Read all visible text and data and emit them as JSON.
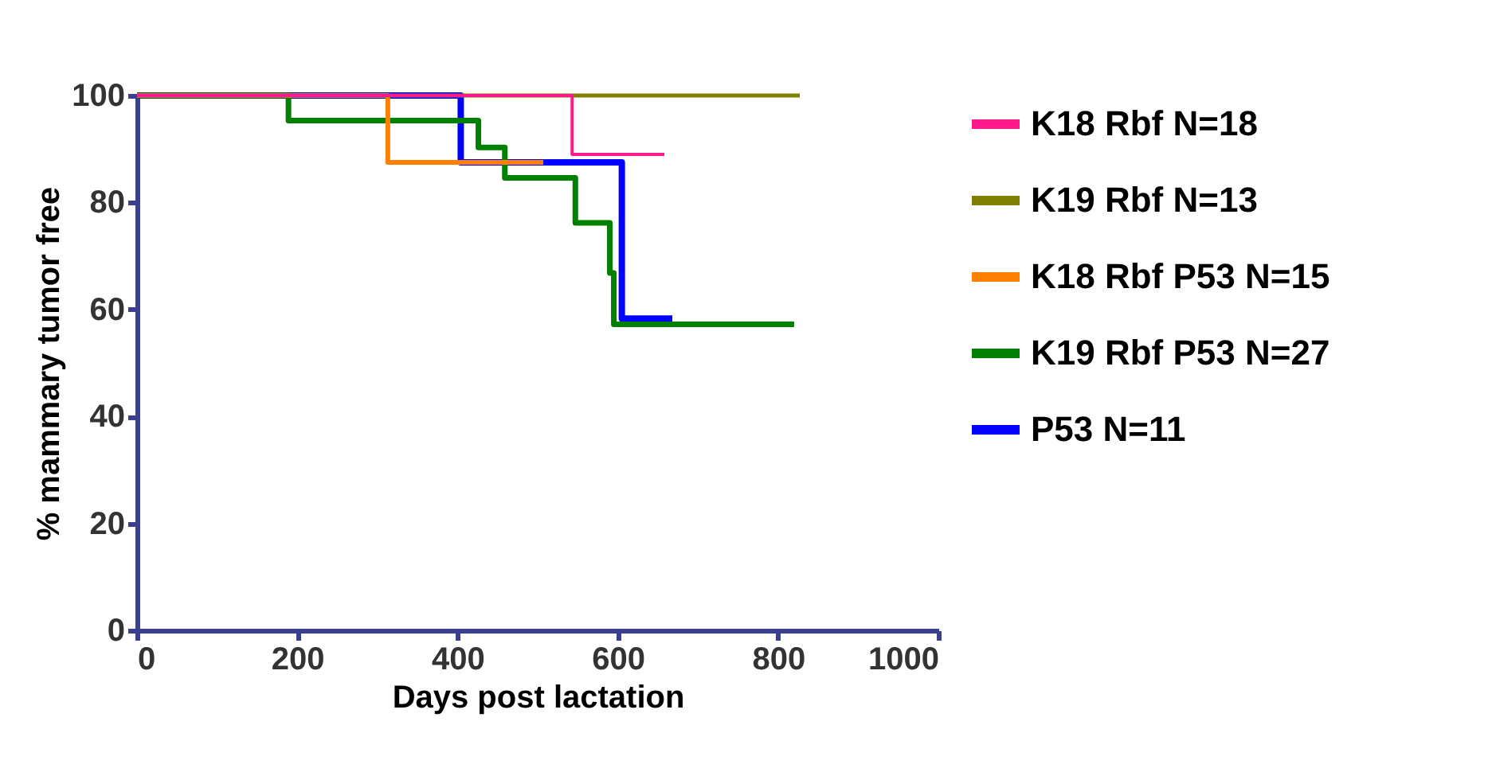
{
  "chart_data": {
    "type": "step",
    "xlabel": "Days post lactation",
    "ylabel": "% mammary tumor free",
    "xlim": [
      0,
      1000
    ],
    "xticks": [
      0,
      200,
      400,
      600,
      800,
      1000
    ],
    "ylim": [
      0,
      100
    ],
    "yticks": [
      0,
      20,
      40,
      60,
      80,
      100
    ],
    "grid": false,
    "legend": "right",
    "marker": "none",
    "line_style": "solid",
    "series": [
      {
        "name": "K18 Rbf  N=18",
        "color": "#ff1a8c",
        "x": [
          0,
          543,
          658
        ],
        "values": [
          100,
          89,
          89
        ]
      },
      {
        "name": "K19 Rbf  N=13",
        "color": "#808000",
        "x": [
          0,
          827
        ],
        "values": [
          100,
          100
        ]
      },
      {
        "name": "K18 Rbf P53  N=15",
        "color": "#ff8000",
        "x": [
          0,
          313,
          507
        ],
        "values": [
          100,
          87.5,
          87.5
        ]
      },
      {
        "name": "K19 Rbf P53  N=27",
        "color": "#008000",
        "x": [
          0,
          189,
          426,
          459,
          547,
          590,
          595,
          820
        ],
        "values": [
          100,
          95.3,
          90.3,
          84.6,
          76.2,
          66.8,
          57.2,
          57.2
        ]
      },
      {
        "name": "P53  N=11",
        "color": "#0000ff",
        "x": [
          0,
          404,
          605,
          668
        ],
        "values": [
          100,
          87.5,
          58.3,
          58.3
        ]
      }
    ]
  }
}
